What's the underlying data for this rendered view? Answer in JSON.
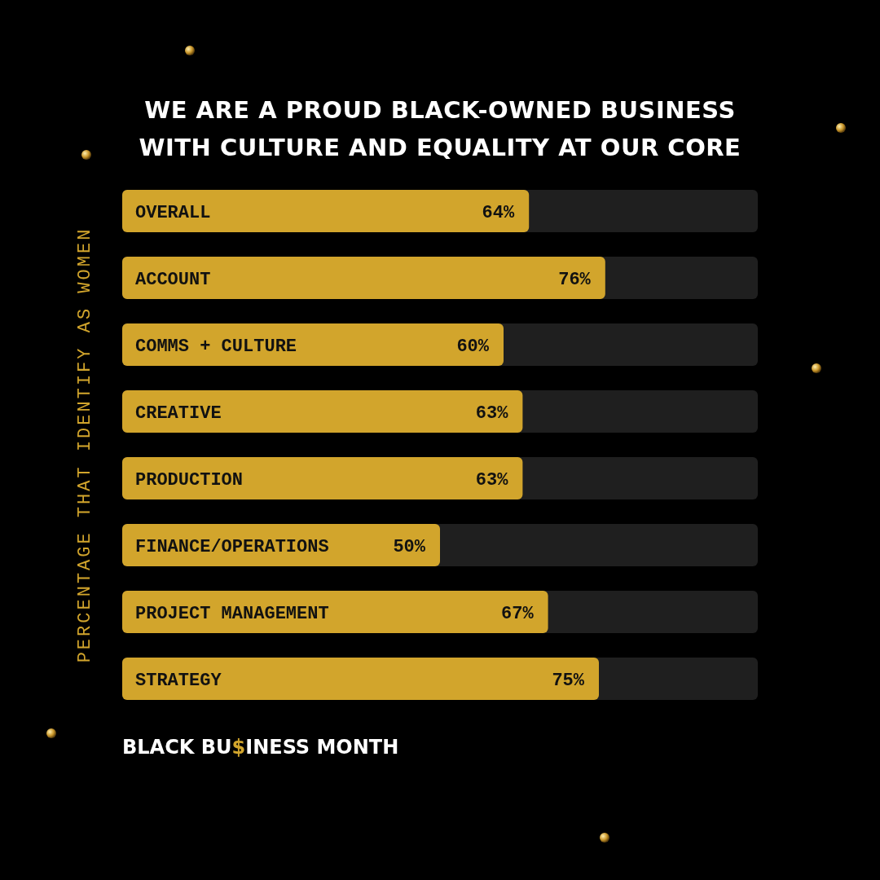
{
  "chart_data": {
    "type": "bar",
    "orientation": "horizontal",
    "title": "WE ARE A PROUD BLACK-OWNED BUSINESS\nWITH CULTURE AND EQUALITY AT OUR CORE",
    "ylabel": "PERCENTAGE THAT IDENTIFY AS WOMEN",
    "categories": [
      "OVERALL",
      "ACCOUNT",
      "COMMS + CULTURE",
      "CREATIVE",
      "PRODUCTION",
      "FINANCE/OPERATIONS",
      "PROJECT MANAGEMENT",
      "STRATEGY"
    ],
    "values": [
      64,
      76,
      60,
      63,
      63,
      50,
      67,
      75
    ],
    "value_labels": [
      "64%",
      "76%",
      "60%",
      "63%",
      "63%",
      "50%",
      "67%",
      "75%"
    ],
    "color": "#d2a52c",
    "xlim": [
      0,
      100
    ],
    "annotations": [
      "BLACK BU$INESS MONTH"
    ]
  }
}
